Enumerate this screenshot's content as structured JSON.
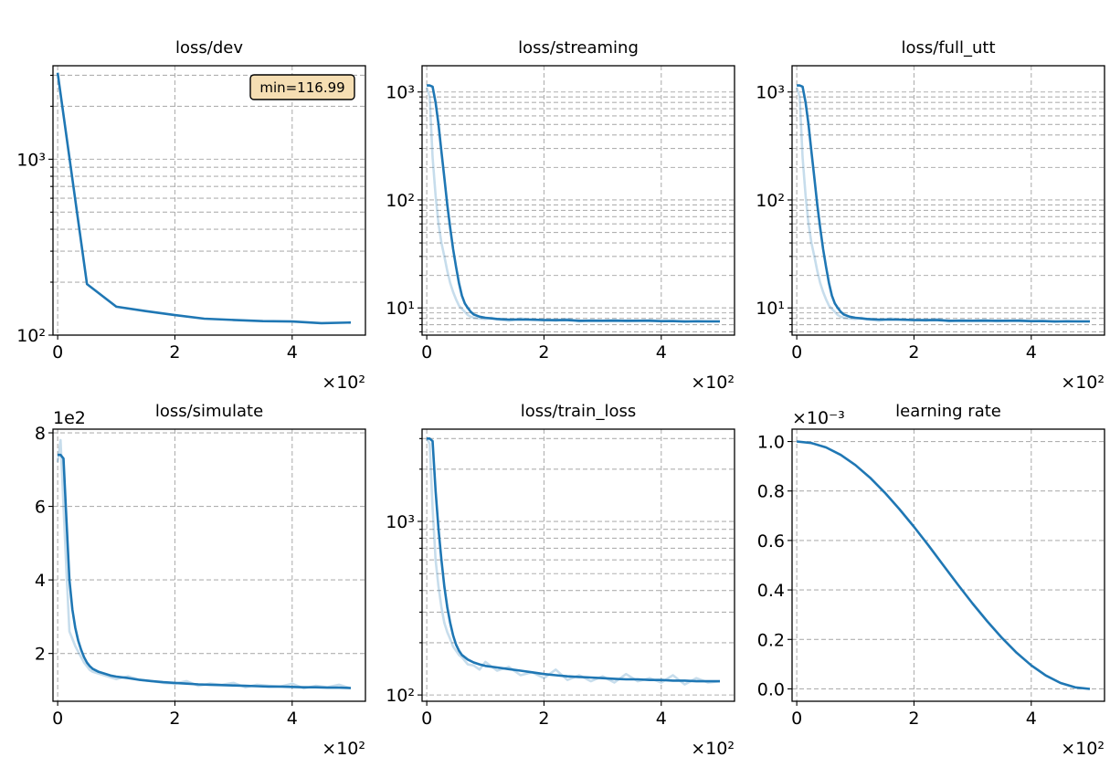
{
  "figure": {
    "line_color": "#1f77b4",
    "raw_opacity": 0.25,
    "grid_color": "#b0b0b0",
    "annotation_color": "#f5deb3"
  },
  "chart_data": [
    {
      "id": "dev",
      "type": "line",
      "title": "loss/dev",
      "xscale": "linear",
      "yscale": "log",
      "xlim": [
        -8,
        525
      ],
      "ylim": [
        100,
        3400
      ],
      "x_ticks": [
        0,
        200,
        400
      ],
      "x_tick_labels": [
        "0",
        "2",
        "4"
      ],
      "x_offset_text": "×10²",
      "y_ticks": [
        100,
        1000
      ],
      "y_tick_labels": [
        "10²",
        "10³"
      ],
      "y_minor_ticks": [
        200,
        300,
        400,
        500,
        600,
        700,
        800,
        900,
        2000,
        3000
      ],
      "y_offset_text": "",
      "annotation": "min=116.99",
      "annotation_position": "top-right",
      "series": [
        {
          "name": "dev",
          "x": [
            0,
            50,
            100,
            150,
            200,
            250,
            300,
            350,
            400,
            450,
            500
          ],
          "y": [
            3100,
            195,
            145,
            137,
            130,
            124,
            122,
            120,
            119.5,
            116.99,
            118
          ]
        }
      ]
    },
    {
      "id": "streaming",
      "type": "line",
      "title": "loss/streaming",
      "xscale": "linear",
      "yscale": "log",
      "xlim": [
        -8,
        525
      ],
      "ylim": [
        5.6,
        1750
      ],
      "x_ticks": [
        0,
        200,
        400
      ],
      "x_tick_labels": [
        "0",
        "2",
        "4"
      ],
      "x_offset_text": "×10²",
      "y_ticks": [
        10,
        100,
        1000
      ],
      "y_tick_labels": [
        "10¹",
        "10²",
        "10³"
      ],
      "y_minor_ticks": [
        6,
        7,
        8,
        9,
        20,
        30,
        40,
        50,
        60,
        70,
        80,
        90,
        200,
        300,
        400,
        500,
        600,
        700,
        800,
        900
      ],
      "y_offset_text": "",
      "series": [
        {
          "name": "raw",
          "x": [
            0,
            5,
            10,
            15,
            20,
            25,
            30,
            35,
            40,
            45,
            50,
            55,
            60,
            65,
            70,
            75,
            80,
            90,
            100,
            110,
            120,
            140,
            160,
            180,
            200,
            220,
            240,
            260,
            280,
            300,
            320,
            340,
            360,
            380,
            400,
            420,
            440,
            460,
            480,
            500
          ],
          "y": [
            1100,
            900,
            250,
            110,
            60,
            40,
            30,
            22,
            17,
            14,
            12,
            10.5,
            9.8,
            9.2,
            8.6,
            8.3,
            8.1,
            8.0,
            7.9,
            8.1,
            7.8,
            7.6,
            8.0,
            7.7,
            7.8,
            7.6,
            7.9,
            7.5,
            7.7,
            7.6,
            7.8,
            7.5,
            7.6,
            7.7,
            7.5,
            7.6,
            7.4,
            7.6,
            7.5,
            7.5
          ]
        },
        {
          "name": "smoothed",
          "x": [
            0,
            5,
            10,
            15,
            20,
            25,
            30,
            35,
            40,
            45,
            50,
            55,
            60,
            65,
            70,
            75,
            80,
            90,
            100,
            110,
            120,
            140,
            160,
            180,
            200,
            220,
            240,
            260,
            280,
            300,
            320,
            340,
            360,
            380,
            400,
            420,
            440,
            460,
            480,
            500
          ],
          "y": [
            1150,
            1150,
            1120,
            800,
            500,
            280,
            160,
            90,
            55,
            35,
            24,
            17,
            13,
            11,
            10,
            9.2,
            8.7,
            8.3,
            8.1,
            8.0,
            7.9,
            7.8,
            7.8,
            7.8,
            7.7,
            7.7,
            7.7,
            7.6,
            7.6,
            7.6,
            7.6,
            7.6,
            7.6,
            7.6,
            7.55,
            7.55,
            7.5,
            7.5,
            7.5,
            7.5
          ]
        }
      ]
    },
    {
      "id": "full_utt",
      "type": "line",
      "title": "loss/full_utt",
      "xscale": "linear",
      "yscale": "log",
      "xlim": [
        -8,
        525
      ],
      "ylim": [
        5.6,
        1750
      ],
      "x_ticks": [
        0,
        200,
        400
      ],
      "x_tick_labels": [
        "0",
        "2",
        "4"
      ],
      "x_offset_text": "×10²",
      "y_ticks": [
        10,
        100,
        1000
      ],
      "y_tick_labels": [
        "10¹",
        "10²",
        "10³"
      ],
      "y_minor_ticks": [
        6,
        7,
        8,
        9,
        20,
        30,
        40,
        50,
        60,
        70,
        80,
        90,
        200,
        300,
        400,
        500,
        600,
        700,
        800,
        900
      ],
      "y_offset_text": "",
      "series": [
        {
          "name": "raw",
          "x": [
            0,
            5,
            10,
            15,
            20,
            25,
            30,
            35,
            40,
            45,
            50,
            55,
            60,
            65,
            70,
            75,
            80,
            90,
            100,
            110,
            120,
            140,
            160,
            180,
            200,
            220,
            240,
            260,
            280,
            300,
            320,
            340,
            360,
            380,
            400,
            420,
            440,
            460,
            480,
            500
          ],
          "y": [
            1100,
            900,
            250,
            110,
            60,
            40,
            30,
            22,
            17,
            14,
            12,
            10.5,
            9.8,
            9.2,
            8.6,
            8.3,
            8.1,
            8.0,
            7.9,
            8.1,
            7.8,
            7.6,
            8.0,
            7.7,
            7.8,
            7.6,
            7.9,
            7.5,
            7.7,
            7.6,
            7.8,
            7.5,
            7.6,
            7.7,
            7.5,
            7.6,
            7.4,
            7.6,
            7.5,
            7.5
          ]
        },
        {
          "name": "smoothed",
          "x": [
            0,
            5,
            10,
            15,
            20,
            25,
            30,
            35,
            40,
            45,
            50,
            55,
            60,
            65,
            70,
            75,
            80,
            90,
            100,
            110,
            120,
            140,
            160,
            180,
            200,
            220,
            240,
            260,
            280,
            300,
            320,
            340,
            360,
            380,
            400,
            420,
            440,
            460,
            480,
            500
          ],
          "y": [
            1150,
            1150,
            1120,
            800,
            500,
            280,
            160,
            90,
            55,
            35,
            24,
            17,
            13,
            11,
            10,
            9.2,
            8.7,
            8.3,
            8.1,
            8.0,
            7.9,
            7.8,
            7.8,
            7.8,
            7.7,
            7.7,
            7.7,
            7.6,
            7.6,
            7.6,
            7.6,
            7.6,
            7.6,
            7.6,
            7.55,
            7.55,
            7.5,
            7.5,
            7.5,
            7.5
          ]
        }
      ]
    },
    {
      "id": "simulate",
      "type": "line",
      "title": "loss/simulate",
      "xscale": "linear",
      "yscale": "linear",
      "xlim": [
        -8,
        525
      ],
      "ylim": [
        70,
        810
      ],
      "x_ticks": [
        0,
        200,
        400
      ],
      "x_tick_labels": [
        "0",
        "2",
        "4"
      ],
      "x_offset_text": "×10²",
      "y_ticks": [
        200,
        400,
        600,
        800
      ],
      "y_tick_labels": [
        "2",
        "4",
        "6",
        "8"
      ],
      "y_minor_ticks": [],
      "y_offset_text": "1e2",
      "series": [
        {
          "name": "raw",
          "x": [
            0,
            5,
            10,
            15,
            20,
            25,
            30,
            35,
            40,
            45,
            50,
            55,
            60,
            70,
            80,
            90,
            100,
            120,
            140,
            160,
            180,
            200,
            220,
            240,
            260,
            280,
            300,
            320,
            340,
            360,
            380,
            400,
            420,
            440,
            460,
            480,
            500
          ],
          "y": [
            720,
            780,
            600,
            420,
            260,
            240,
            220,
            205,
            190,
            175,
            165,
            155,
            150,
            145,
            140,
            135,
            130,
            138,
            128,
            125,
            120,
            118,
            125,
            112,
            118,
            115,
            120,
            108,
            115,
            112,
            110,
            118,
            105,
            112,
            108,
            115,
            105
          ]
        },
        {
          "name": "smoothed",
          "x": [
            0,
            5,
            10,
            15,
            20,
            25,
            30,
            35,
            40,
            45,
            50,
            55,
            60,
            70,
            80,
            90,
            100,
            120,
            140,
            160,
            180,
            200,
            220,
            240,
            260,
            280,
            300,
            320,
            340,
            360,
            380,
            400,
            420,
            440,
            460,
            480,
            500
          ],
          "y": [
            740,
            740,
            730,
            560,
            400,
            320,
            270,
            235,
            210,
            190,
            175,
            165,
            158,
            150,
            145,
            140,
            137,
            133,
            128,
            125,
            122,
            120,
            118,
            116,
            115,
            114,
            113,
            112,
            111,
            110,
            110,
            109,
            108,
            108,
            107,
            107,
            106
          ]
        }
      ]
    },
    {
      "id": "train_loss",
      "type": "line",
      "title": "loss/train_loss",
      "xscale": "linear",
      "yscale": "log",
      "xlim": [
        -8,
        525
      ],
      "ylim": [
        92,
        3400
      ],
      "x_ticks": [
        0,
        200,
        400
      ],
      "x_tick_labels": [
        "0",
        "2",
        "4"
      ],
      "x_offset_text": "×10²",
      "y_ticks": [
        100,
        1000
      ],
      "y_tick_labels": [
        "10²",
        "10³"
      ],
      "y_minor_ticks": [
        200,
        300,
        400,
        500,
        600,
        700,
        800,
        900,
        2000,
        3000
      ],
      "y_offset_text": "",
      "series": [
        {
          "name": "raw",
          "x": [
            0,
            5,
            10,
            15,
            20,
            25,
            30,
            35,
            40,
            45,
            50,
            55,
            60,
            70,
            80,
            90,
            100,
            120,
            140,
            160,
            180,
            200,
            220,
            240,
            260,
            280,
            300,
            320,
            340,
            360,
            380,
            400,
            420,
            440,
            460,
            480,
            500
          ],
          "y": [
            3000,
            2800,
            1200,
            600,
            420,
            320,
            260,
            230,
            210,
            190,
            180,
            170,
            165,
            150,
            148,
            140,
            155,
            138,
            145,
            130,
            135,
            125,
            140,
            122,
            130,
            120,
            128,
            118,
            132,
            120,
            125,
            118,
            130,
            115,
            125,
            118,
            120
          ]
        },
        {
          "name": "smoothed",
          "x": [
            0,
            5,
            10,
            15,
            20,
            25,
            30,
            35,
            40,
            45,
            50,
            55,
            60,
            70,
            80,
            90,
            100,
            120,
            140,
            160,
            180,
            200,
            220,
            240,
            260,
            280,
            300,
            320,
            340,
            360,
            380,
            400,
            420,
            440,
            460,
            480,
            500
          ],
          "y": [
            3000,
            3000,
            2900,
            1500,
            900,
            600,
            420,
            320,
            260,
            220,
            195,
            180,
            170,
            160,
            154,
            150,
            147,
            144,
            141,
            138,
            135,
            132,
            130,
            128,
            127,
            126,
            125,
            124,
            123,
            123,
            122,
            122,
            121,
            121,
            120,
            120,
            120
          ]
        }
      ]
    },
    {
      "id": "learning_rate",
      "type": "line",
      "title": "learning rate",
      "xscale": "linear",
      "yscale": "linear",
      "xlim": [
        -8,
        525
      ],
      "ylim": [
        -0.05,
        1.05
      ],
      "x_ticks": [
        0,
        200,
        400
      ],
      "x_tick_labels": [
        "0",
        "2",
        "4"
      ],
      "x_offset_text": "×10²",
      "y_ticks": [
        0.0,
        0.2,
        0.4,
        0.6,
        0.8,
        1.0
      ],
      "y_tick_labels": [
        "0.0",
        "0.2",
        "0.4",
        "0.6",
        "0.8",
        "1.0"
      ],
      "y_minor_ticks": [],
      "y_offset_text": "×10⁻³",
      "series": [
        {
          "name": "lr",
          "x": [
            0,
            25,
            50,
            75,
            100,
            125,
            150,
            175,
            200,
            225,
            250,
            275,
            300,
            325,
            350,
            375,
            400,
            425,
            450,
            475,
            500
          ],
          "y": [
            1.0,
            0.994,
            0.976,
            0.946,
            0.905,
            0.854,
            0.794,
            0.727,
            0.655,
            0.579,
            0.5,
            0.421,
            0.345,
            0.273,
            0.206,
            0.146,
            0.095,
            0.054,
            0.024,
            0.006,
            0.0
          ]
        }
      ]
    }
  ]
}
